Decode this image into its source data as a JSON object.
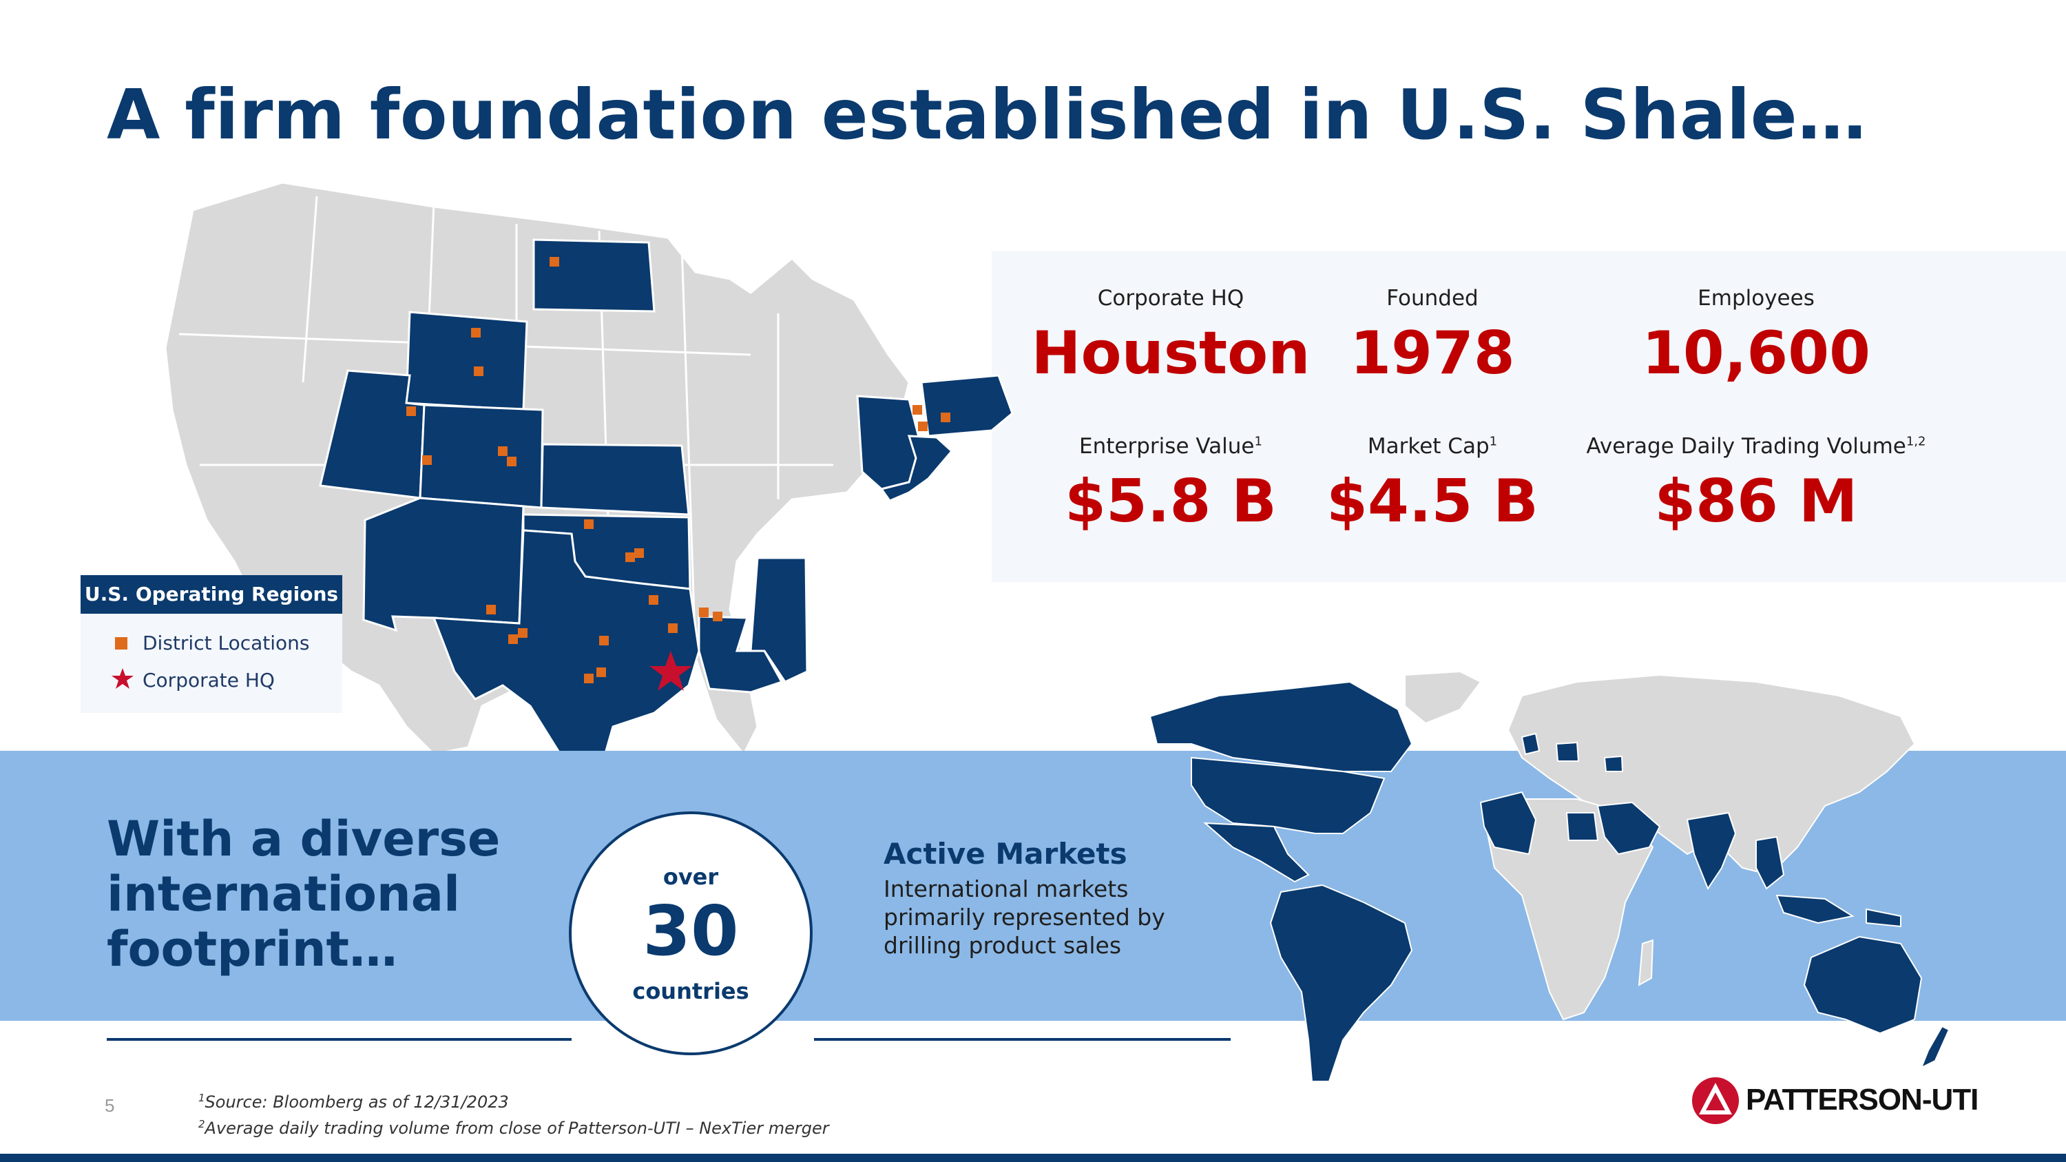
{
  "title": "A firm foundation established in U.S. Shale…",
  "stats": [
    {
      "label": "Corporate HQ",
      "sup": "",
      "value": "Houston"
    },
    {
      "label": "Founded",
      "sup": "",
      "value": "1978"
    },
    {
      "label": "Employees",
      "sup": "",
      "value": "10,600"
    },
    {
      "label": "Enterprise Value",
      "sup": "1",
      "value": "$5.8 B"
    },
    {
      "label": "Market Cap",
      "sup": "1",
      "value": "$4.5 B"
    },
    {
      "label": "Average Daily Trading Volume",
      "sup": "1,2",
      "value": "$86 M"
    }
  ],
  "legend": {
    "title": "U.S. Operating Regions",
    "items": [
      {
        "label": "District Locations",
        "icon": "square-icon",
        "color": "#e06a1b"
      },
      {
        "label": "Corporate HQ",
        "icon": "star-icon",
        "color": "#c8102e"
      }
    ]
  },
  "international": {
    "heading": "With a diverse international footprint…",
    "count_prefix": "over",
    "count": "30",
    "count_suffix": "countries",
    "active_title": "Active Markets",
    "active_desc": "International markets primarily represented by drilling product sales"
  },
  "footer": {
    "page_number": "5",
    "footnote_1_sup": "1",
    "footnote_1": "Source: Bloomberg as of 12/31/2023",
    "footnote_2_sup": "2",
    "footnote_2": "Average daily trading volume from close of Patterson-UTI – NexTier merger",
    "logo_text": "PATTERSON-UTI"
  },
  "colors": {
    "navy": "#0a3a6e",
    "red": "#c00000",
    "band": "#8bb8e6",
    "map_gray": "#d9d9d9",
    "district": "#e06a1b"
  }
}
